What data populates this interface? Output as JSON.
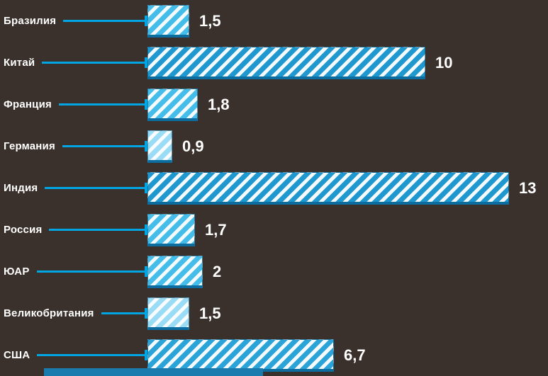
{
  "chart_data": {
    "type": "bar",
    "orientation": "horizontal",
    "title": "",
    "xlabel": "",
    "ylabel": "",
    "xlim": [
      0,
      13
    ],
    "grid": false,
    "legend": false,
    "categories": [
      "Бразилия",
      "Китай",
      "Франция",
      "Германия",
      "Индия",
      "Россия",
      "ЮАР",
      "Великобритания",
      "США"
    ],
    "values": [
      1.5,
      10,
      1.8,
      0.9,
      13,
      1.7,
      2,
      1.5,
      6.7
    ],
    "value_labels": [
      "1,5",
      "10",
      "1,8",
      "0,9",
      "13",
      "1,7",
      "2",
      "1,5",
      "6,7"
    ],
    "bar_colors": [
      "#45bdea",
      "#1f97cf",
      "#45bdea",
      "#9adcf6",
      "#1f97cf",
      "#45bdea",
      "#45bdea",
      "#9adcf6",
      "#2aa3d8"
    ],
    "colors": {
      "background": "#3a312c",
      "label_text": "#ffffff",
      "value_text": "#ffffff",
      "leader_line": "#00a6e4",
      "bar_stripe": "#ffffff",
      "bar_bottom_edge": "#0b6da0",
      "bottom_strip": "#1a7cae"
    },
    "style": "hatched-diagonal-stripes"
  }
}
